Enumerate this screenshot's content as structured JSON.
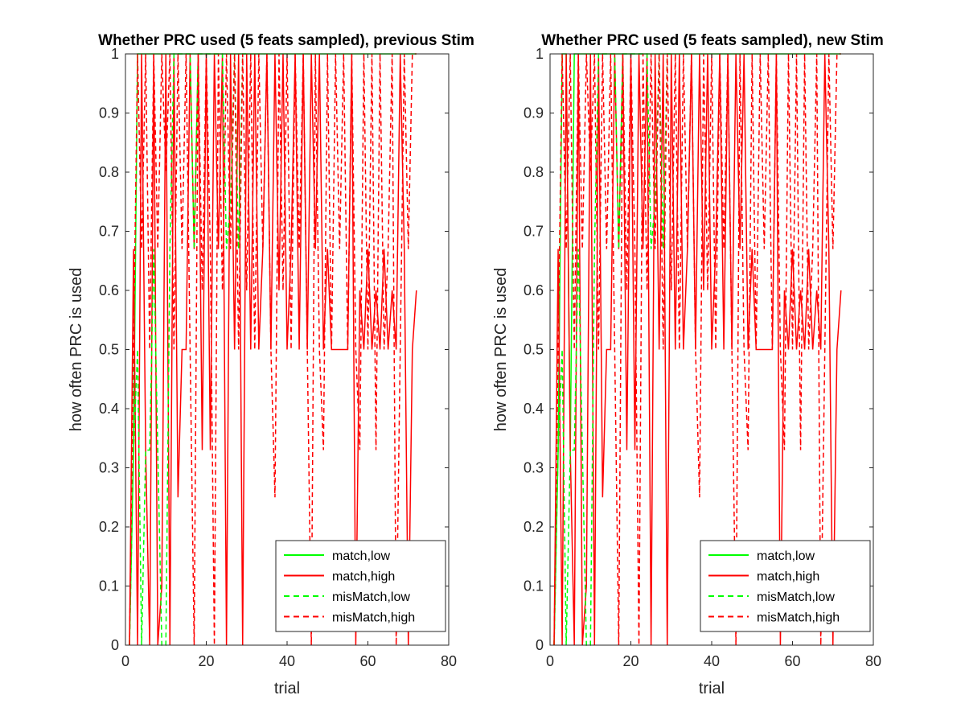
{
  "chart_data": [
    {
      "type": "line",
      "title": "Whether PRC used (5 feats sampled), previous Stim",
      "xlabel": "trial",
      "ylabel": "how often PRC is used",
      "xlim": [
        0,
        80
      ],
      "ylim": [
        0,
        1
      ],
      "xticks": [
        0,
        20,
        40,
        60,
        80
      ],
      "yticks": [
        0,
        0.1,
        0.2,
        0.3,
        0.4,
        0.5,
        0.6,
        0.7,
        0.8,
        0.9,
        1
      ],
      "xtick_labels": [
        "0",
        "20",
        "40",
        "60",
        "80"
      ],
      "ytick_labels": [
        "0",
        "0.1",
        "0.2",
        "0.3",
        "0.4",
        "0.5",
        "0.6",
        "0.7",
        "0.8",
        "0.9",
        "1"
      ],
      "grid": false,
      "legend_position": "bottom-right",
      "series": [
        {
          "name": "match,low",
          "color": "#00ff00",
          "dash": "solid",
          "x": [
            1,
            2,
            3,
            4,
            5,
            6,
            7,
            8,
            9,
            10,
            11,
            12,
            13,
            14,
            15,
            16,
            17,
            18,
            19,
            20,
            21,
            22,
            23,
            24,
            25,
            26,
            27,
            28,
            29,
            30,
            31,
            32,
            33,
            34,
            35,
            36,
            37,
            38,
            39,
            40,
            41,
            42,
            43,
            44,
            45,
            46,
            47,
            48,
            49,
            50,
            51,
            52,
            53,
            54,
            55,
            56,
            57,
            58,
            59,
            60,
            61,
            62,
            63,
            64,
            65,
            66,
            67,
            68,
            69,
            70,
            71,
            72
          ],
          "y": [
            0,
            0.33,
            1,
            1,
            1,
            1,
            1,
            1,
            1,
            1,
            1,
            1,
            1,
            1,
            1,
            1,
            1,
            1,
            1,
            1,
            1,
            1,
            1,
            1,
            1,
            1,
            1,
            1,
            1,
            1,
            1,
            1,
            1,
            1,
            1,
            1,
            1,
            1,
            1,
            1,
            1,
            1,
            1,
            1,
            1,
            1,
            1,
            1,
            1,
            1,
            1,
            1,
            1,
            1,
            1,
            1,
            1,
            1,
            1,
            1,
            1,
            1,
            1,
            1,
            1,
            1,
            1,
            1,
            1,
            1,
            1,
            1
          ]
        },
        {
          "name": "match,high",
          "color": "#ff0000",
          "dash": "solid",
          "x": [
            1,
            2,
            3,
            4,
            5,
            6,
            7,
            8,
            9,
            10,
            11,
            12,
            13,
            14,
            15,
            16,
            17,
            18,
            19,
            20,
            21,
            22,
            23,
            24,
            25,
            26,
            27,
            28,
            29,
            30,
            31,
            32,
            33,
            34,
            35,
            36,
            37,
            38,
            39,
            40,
            41,
            42,
            43,
            44,
            45,
            46,
            47,
            48,
            49,
            50,
            51,
            52,
            53,
            54,
            55,
            56,
            57,
            58,
            59,
            60,
            61,
            62,
            63,
            64,
            65,
            66,
            67,
            68,
            69,
            70,
            71,
            72
          ],
          "y": [
            0,
            0.67,
            0,
            1,
            0.33,
            0,
            1,
            0,
            0.1,
            1,
            0,
            1,
            0.25,
            0.5,
            0.5,
            1,
            0.67,
            1,
            0.33,
            1,
            0.33,
            1,
            0.67,
            1,
            0,
            1,
            0.5,
            1,
            0,
            1,
            0.5,
            1,
            0.5,
            0.67,
            1,
            0.5,
            1,
            0.6,
            1,
            0.5,
            0.67,
            1,
            0.5,
            1,
            0.5,
            1,
            0.67,
            1,
            0.5,
            0.67,
            0.5,
            0.5,
            0.5,
            0.5,
            0.5,
            1,
            0,
            0.6,
            0.5,
            0.67,
            0.5,
            0.6,
            0.5,
            0.67,
            0.5,
            0.6,
            0.5,
            1,
            0.67,
            0,
            0.5,
            0.6
          ]
        },
        {
          "name": "misMatch,low",
          "color": "#00ff00",
          "dash": "dashed",
          "x": [
            1,
            2,
            3,
            4,
            5,
            6,
            7,
            8,
            9,
            10,
            11,
            12,
            13,
            14,
            15,
            16,
            17,
            18,
            19,
            20,
            21,
            22,
            23,
            24,
            25,
            26,
            27,
            28,
            29,
            30
          ],
          "y": [
            0,
            0.33,
            0.5,
            0,
            0.33,
            0.33,
            0.67,
            0.33,
            0,
            0,
            0.67,
            1,
            1,
            1,
            1,
            1,
            0.67,
            1,
            1,
            1,
            1,
            1,
            1,
            1,
            0.67,
            0.75,
            1,
            0.67,
            1,
            1
          ]
        },
        {
          "name": "misMatch,high",
          "color": "#ff0000",
          "dash": "dashed",
          "x": [
            1,
            2,
            3,
            4,
            5,
            6,
            7,
            8,
            9,
            10,
            11,
            12,
            13,
            14,
            15,
            16,
            17,
            18,
            19,
            20,
            21,
            22,
            23,
            24,
            25,
            26,
            27,
            28,
            29,
            30,
            31,
            32,
            33,
            34,
            35,
            36,
            37,
            38,
            39,
            40,
            41,
            42,
            43,
            44,
            45,
            46,
            47,
            48,
            49,
            50,
            51,
            52,
            53,
            54,
            55,
            56,
            57,
            58,
            59,
            60,
            61,
            62,
            63,
            64,
            65,
            66,
            67,
            68,
            69,
            70,
            71,
            72
          ],
          "y": [
            0,
            0.5,
            1,
            0.67,
            1,
            0.5,
            1,
            0.67,
            1,
            0.8,
            1,
            0.5,
            1,
            0.67,
            1,
            0.5,
            0,
            1,
            0.6,
            1,
            0.67,
            0,
            1,
            0.6,
            1,
            0.67,
            1,
            0.5,
            1,
            0.6,
            1,
            0.5,
            1,
            0.67,
            1,
            0.5,
            0.25,
            1,
            0.6,
            1,
            0.5,
            1,
            0.67,
            1,
            0.5,
            0,
            1,
            0.5,
            0.33,
            1,
            0.5,
            1,
            0.67,
            1,
            0.5,
            1,
            0.5,
            0.33,
            1,
            0.5,
            1,
            0.33,
            1,
            0.5,
            0.67,
            1,
            0,
            0.5,
            1,
            0.67,
            1,
            1
          ]
        }
      ]
    },
    {
      "type": "line",
      "title": "Whether PRC used (5 feats sampled), new Stim",
      "xlabel": "trial",
      "ylabel": "how often PRC is used",
      "xlim": [
        0,
        80
      ],
      "ylim": [
        0,
        1
      ],
      "xticks": [
        0,
        20,
        40,
        60,
        80
      ],
      "yticks": [
        0,
        0.1,
        0.2,
        0.3,
        0.4,
        0.5,
        0.6,
        0.7,
        0.8,
        0.9,
        1
      ],
      "xtick_labels": [
        "0",
        "20",
        "40",
        "60",
        "80"
      ],
      "ytick_labels": [
        "0",
        "0.1",
        "0.2",
        "0.3",
        "0.4",
        "0.5",
        "0.6",
        "0.7",
        "0.8",
        "0.9",
        "1"
      ],
      "grid": false,
      "legend_position": "bottom-right",
      "series": [
        {
          "name": "match,low",
          "color": "#00ff00",
          "dash": "solid",
          "x": [
            1,
            2,
            3,
            4,
            5,
            6,
            7,
            8,
            9,
            10,
            11,
            12,
            13,
            14,
            15,
            16,
            17,
            18,
            19,
            20,
            21,
            22,
            23,
            24,
            25,
            26,
            27,
            28,
            29,
            30,
            31,
            32,
            33,
            34,
            35,
            36,
            37,
            38,
            39,
            40,
            41,
            42,
            43,
            44,
            45,
            46,
            47,
            48,
            49,
            50,
            51,
            52,
            53,
            54,
            55,
            56,
            57,
            58,
            59,
            60,
            61,
            62,
            63,
            64,
            65,
            66,
            67,
            68,
            69,
            70,
            71,
            72
          ],
          "y": [
            0,
            0.33,
            1,
            1,
            0.33,
            1,
            1,
            1,
            1,
            1,
            1,
            1,
            1,
            1,
            1,
            1,
            1,
            1,
            1,
            1,
            1,
            1,
            1,
            1,
            1,
            1,
            1,
            1,
            1,
            1,
            1,
            1,
            1,
            1,
            1,
            1,
            1,
            1,
            1,
            1,
            1,
            1,
            1,
            1,
            1,
            1,
            1,
            1,
            1,
            1,
            1,
            1,
            1,
            1,
            1,
            1,
            1,
            1,
            1,
            1,
            1,
            1,
            1,
            1,
            1,
            1,
            1,
            1,
            1,
            1,
            1,
            1
          ]
        },
        {
          "name": "match,high",
          "color": "#ff0000",
          "dash": "solid",
          "x": [
            1,
            2,
            3,
            4,
            5,
            6,
            7,
            8,
            9,
            10,
            11,
            12,
            13,
            14,
            15,
            16,
            17,
            18,
            19,
            20,
            21,
            22,
            23,
            24,
            25,
            26,
            27,
            28,
            29,
            30,
            31,
            32,
            33,
            34,
            35,
            36,
            37,
            38,
            39,
            40,
            41,
            42,
            43,
            44,
            45,
            46,
            47,
            48,
            49,
            50,
            51,
            52,
            53,
            54,
            55,
            56,
            57,
            58,
            59,
            60,
            61,
            62,
            63,
            64,
            65,
            66,
            67,
            68,
            69,
            70,
            71,
            72
          ],
          "y": [
            0,
            0.67,
            0,
            1,
            0.33,
            0,
            1,
            0,
            0.1,
            1,
            0,
            1,
            0.25,
            0.5,
            0.5,
            1,
            0.67,
            1,
            0.33,
            1,
            0.33,
            1,
            0.67,
            1,
            0,
            1,
            0.5,
            1,
            0,
            1,
            0.5,
            1,
            0.5,
            0.67,
            1,
            0.5,
            1,
            0.6,
            1,
            0.5,
            0.67,
            1,
            0.5,
            1,
            0.5,
            1,
            0.67,
            1,
            0.5,
            0.67,
            0.5,
            0.5,
            0.5,
            0.5,
            0.5,
            1,
            0,
            0.6,
            0.5,
            0.67,
            0.5,
            0.6,
            0.5,
            0.67,
            0.5,
            0.6,
            0.5,
            1,
            0.67,
            0,
            0.5,
            0.6
          ]
        },
        {
          "name": "misMatch,low",
          "color": "#00ff00",
          "dash": "dashed",
          "x": [
            1,
            2,
            3,
            4,
            5,
            6,
            7,
            8,
            9,
            10,
            11,
            12,
            13,
            14,
            15,
            16,
            17,
            18,
            19,
            20,
            21,
            22,
            23,
            24,
            25,
            26,
            27,
            28,
            29,
            30
          ],
          "y": [
            0,
            0.33,
            0.5,
            0,
            0.33,
            0.33,
            0.67,
            0.33,
            0,
            0,
            0.67,
            1,
            1,
            1,
            1,
            1,
            0.67,
            1,
            1,
            1,
            1,
            1,
            1,
            1,
            0.67,
            0.75,
            1,
            0.67,
            1,
            1
          ]
        },
        {
          "name": "misMatch,high",
          "color": "#ff0000",
          "dash": "dashed",
          "x": [
            1,
            2,
            3,
            4,
            5,
            6,
            7,
            8,
            9,
            10,
            11,
            12,
            13,
            14,
            15,
            16,
            17,
            18,
            19,
            20,
            21,
            22,
            23,
            24,
            25,
            26,
            27,
            28,
            29,
            30,
            31,
            32,
            33,
            34,
            35,
            36,
            37,
            38,
            39,
            40,
            41,
            42,
            43,
            44,
            45,
            46,
            47,
            48,
            49,
            50,
            51,
            52,
            53,
            54,
            55,
            56,
            57,
            58,
            59,
            60,
            61,
            62,
            63,
            64,
            65,
            66,
            67,
            68,
            69,
            70,
            71,
            72
          ],
          "y": [
            0,
            0.5,
            1,
            0.67,
            1,
            0.5,
            1,
            0.67,
            1,
            0.8,
            1,
            0.5,
            1,
            0.67,
            1,
            0.5,
            0,
            1,
            0.6,
            1,
            0.67,
            0,
            1,
            0.6,
            1,
            0.67,
            1,
            0.5,
            1,
            0.6,
            1,
            0.5,
            1,
            0.67,
            1,
            0.5,
            0.25,
            1,
            0.6,
            1,
            0.5,
            1,
            0.67,
            1,
            0.5,
            0,
            1,
            0.5,
            0.33,
            1,
            0.5,
            1,
            0.67,
            1,
            0.5,
            1,
            0.5,
            0.33,
            1,
            0.5,
            1,
            0.33,
            1,
            0.5,
            0.67,
            1,
            0,
            0.5,
            1,
            0.67,
            1,
            1
          ]
        }
      ]
    }
  ]
}
